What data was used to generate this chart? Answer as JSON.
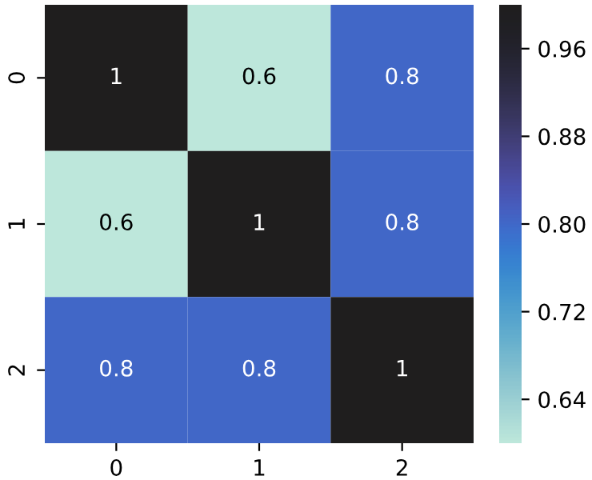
{
  "chart_data": {
    "type": "heatmap",
    "categories": [
      "0",
      "1",
      "2"
    ],
    "y_categories": [
      "0",
      "1",
      "2"
    ],
    "cells": [
      [
        1,
        0.6,
        0.8
      ],
      [
        0.6,
        1,
        0.8
      ],
      [
        0.8,
        0.8,
        1
      ]
    ],
    "clim": [
      0.6,
      1.0
    ],
    "cticks": [
      0.64,
      0.72,
      {
        "value": 0.8,
        "label": "0.80"
      },
      0.88,
      0.96
    ],
    "data_labels": true
  }
}
